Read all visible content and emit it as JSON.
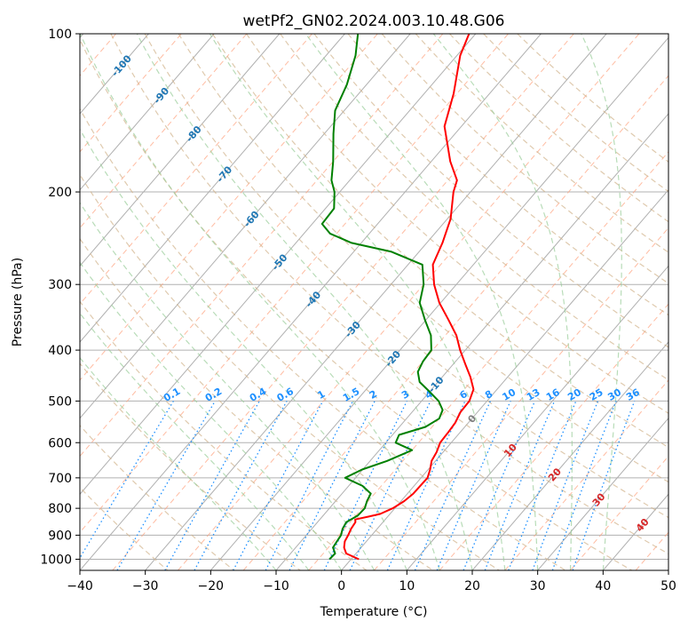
{
  "chart_data": {
    "type": "line",
    "title": "wetPf2_GN02.2024.003.10.48.G06",
    "xlabel": "Temperature (°C)",
    "ylabel": "Pressure (hPa)",
    "xlim": [
      -40,
      50
    ],
    "ylim": [
      1050,
      100
    ],
    "y_scale": "log",
    "x_ticks": [
      -40,
      -30,
      -20,
      -10,
      0,
      10,
      20,
      30,
      40,
      50
    ],
    "x_tick_labels": [
      "−40",
      "−30",
      "−20",
      "−10",
      "0",
      "10",
      "20",
      "30",
      "40",
      "50"
    ],
    "y_ticks": [
      100,
      200,
      300,
      400,
      500,
      600,
      700,
      800,
      900,
      1000
    ],
    "y_tick_labels": [
      "100",
      "200",
      "300",
      "400",
      "500",
      "600",
      "700",
      "800",
      "900",
      "1000"
    ],
    "grid": true,
    "skew_diagram": true,
    "series": [
      {
        "key": "temperature",
        "color": "#ff0000",
        "points": [
          [
            1000,
            1.2
          ],
          [
            975,
            -1.5
          ],
          [
            950,
            -2.6
          ],
          [
            925,
            -3.3
          ],
          [
            900,
            -3.6
          ],
          [
            875,
            -4.0
          ],
          [
            850,
            -4.2
          ],
          [
            840,
            -4.6
          ],
          [
            830,
            -3.0
          ],
          [
            820,
            -1.5
          ],
          [
            800,
            -0.3
          ],
          [
            775,
            0.5
          ],
          [
            750,
            0.9
          ],
          [
            700,
            1.0
          ],
          [
            675,
            0.3
          ],
          [
            650,
            -0.6
          ],
          [
            625,
            -1.0
          ],
          [
            600,
            -1.7
          ],
          [
            575,
            -1.8
          ],
          [
            550,
            -2.0
          ],
          [
            525,
            -2.6
          ],
          [
            500,
            -2.7
          ],
          [
            475,
            -3.6
          ],
          [
            450,
            -5.7
          ],
          [
            425,
            -8.2
          ],
          [
            400,
            -10.8
          ],
          [
            375,
            -13.3
          ],
          [
            350,
            -16.6
          ],
          [
            325,
            -20.2
          ],
          [
            300,
            -23.4
          ],
          [
            275,
            -26.2
          ],
          [
            250,
            -27.6
          ],
          [
            225,
            -29.5
          ],
          [
            200,
            -32.6
          ],
          [
            190,
            -33.6
          ],
          [
            175,
            -37.1
          ],
          [
            150,
            -42.6
          ],
          [
            130,
            -45.5
          ],
          [
            110,
            -49.5
          ],
          [
            100,
            -51.0
          ]
        ]
      },
      {
        "key": "dewpoint",
        "color": "#008000",
        "points": [
          [
            1000,
            -3.3
          ],
          [
            975,
            -3.2
          ],
          [
            950,
            -4.3
          ],
          [
            925,
            -4.5
          ],
          [
            900,
            -4.7
          ],
          [
            875,
            -5.3
          ],
          [
            850,
            -5.6
          ],
          [
            825,
            -4.7
          ],
          [
            800,
            -4.6
          ],
          [
            775,
            -5.2
          ],
          [
            750,
            -5.6
          ],
          [
            725,
            -7.9
          ],
          [
            700,
            -11.6
          ],
          [
            675,
            -10.1
          ],
          [
            650,
            -7.4
          ],
          [
            620,
            -5.0
          ],
          [
            600,
            -8.5
          ],
          [
            580,
            -9.0
          ],
          [
            560,
            -6.0
          ],
          [
            540,
            -5.0
          ],
          [
            520,
            -5.6
          ],
          [
            500,
            -7.4
          ],
          [
            480,
            -10.0
          ],
          [
            460,
            -12.8
          ],
          [
            440,
            -14.4
          ],
          [
            420,
            -15.0
          ],
          [
            400,
            -15.2
          ],
          [
            375,
            -17.2
          ],
          [
            350,
            -20.2
          ],
          [
            325,
            -23.2
          ],
          [
            300,
            -25.0
          ],
          [
            275,
            -27.8
          ],
          [
            260,
            -34.2
          ],
          [
            250,
            -41.5
          ],
          [
            240,
            -46.0
          ],
          [
            230,
            -48.5
          ],
          [
            215,
            -48.7
          ],
          [
            200,
            -50.8
          ],
          [
            190,
            -52.8
          ],
          [
            175,
            -55.0
          ],
          [
            155,
            -58.6
          ],
          [
            140,
            -61.4
          ],
          [
            125,
            -63.0
          ],
          [
            110,
            -65.5
          ],
          [
            100,
            -68.0
          ]
        ]
      }
    ],
    "dry_adiabat_thetas_C": [
      -30,
      -20,
      -10,
      0,
      10,
      20,
      30,
      40,
      50,
      60,
      70,
      80,
      90,
      100,
      110,
      120,
      130,
      140,
      150,
      160,
      170
    ],
    "moist_adiabat_start_temps_C": [
      -10,
      -5,
      0,
      5,
      10,
      15,
      20,
      25,
      30,
      35,
      40
    ],
    "isotherm_values_C": [
      -120,
      -110,
      -100,
      -90,
      -80,
      -70,
      -60,
      -50,
      -40,
      -30,
      -20,
      -10,
      0,
      10,
      20,
      30,
      40,
      50
    ],
    "isotherm_labels": [
      {
        "t": -100,
        "p": 115,
        "text": "-100"
      },
      {
        "t": -90,
        "p": 131,
        "text": "-90"
      },
      {
        "t": -80,
        "p": 155,
        "text": "-80"
      },
      {
        "t": -70,
        "p": 185,
        "text": "-70"
      },
      {
        "t": -60,
        "p": 225,
        "text": "-60"
      },
      {
        "t": -50,
        "p": 272,
        "text": "-50"
      },
      {
        "t": -40,
        "p": 320,
        "text": "-40"
      },
      {
        "t": -30,
        "p": 365,
        "text": "-30"
      },
      {
        "t": -20,
        "p": 415,
        "text": "-20"
      },
      {
        "t": -10,
        "p": 465,
        "text": "-10"
      },
      {
        "t": 0,
        "p": 540,
        "text": "0"
      },
      {
        "t": 10,
        "p": 620,
        "text": "10"
      },
      {
        "t": 20,
        "p": 690,
        "text": "20"
      },
      {
        "t": 30,
        "p": 770,
        "text": "30"
      },
      {
        "t": 40,
        "p": 860,
        "text": "40"
      }
    ],
    "mixing_ratio_values_gkg": [
      0.1,
      0.2,
      0.4,
      0.6,
      1,
      1.5,
      2,
      3,
      4,
      6,
      8,
      10,
      13,
      16,
      20,
      25,
      30,
      36
    ],
    "mixing_ratio_labels": [
      "0.1",
      "0.2",
      "0.4",
      "0.6",
      "1",
      "1.5",
      "2",
      "3",
      "4",
      "6",
      "8",
      "10",
      "13",
      "16",
      "20",
      "25",
      "30",
      "36"
    ],
    "colors": {
      "temperature": "#ff0000",
      "dewpoint": "#008000",
      "dry_adiabat": "#d2b48c",
      "moist_adiabat": "#9acd9a",
      "isotherm_dashed": "#ffa07a",
      "mixing_ratio": "#1e90ff",
      "isotherm_label_cold": "#1f77b4",
      "isotherm_label_zero": "#808080",
      "isotherm_label_warm": "#d62728",
      "grid": "#b0b0b0"
    }
  }
}
